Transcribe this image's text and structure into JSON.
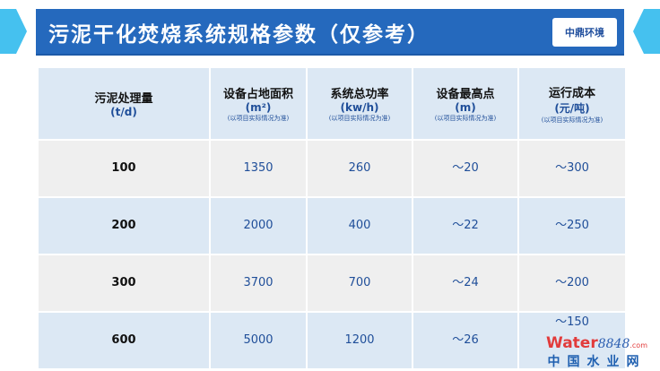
{
  "title": "污泥干化焚烧系统规格参数（仅参考）",
  "logo_text": "中鼎环境",
  "table": {
    "headers": [
      {
        "title": "污泥处理量",
        "unit": "(t/d)",
        "note": ""
      },
      {
        "title": "设备占地面积",
        "unit": "(m²)",
        "note": "(以项目实际情况为准)"
      },
      {
        "title": "系统总功率",
        "unit": "(kw/h)",
        "note": "(以项目实际情况为准)"
      },
      {
        "title": "设备最高点",
        "unit": "(m)",
        "note": "(以项目实际情况为准)"
      },
      {
        "title": "运行成本",
        "unit": "(元/吨)",
        "note": "(以项目实际情况为准)"
      }
    ],
    "rows": [
      [
        "100",
        "1350",
        "260",
        "～20",
        "～300"
      ],
      [
        "200",
        "2000",
        "400",
        "～22",
        "～250"
      ],
      [
        "300",
        "3700",
        "700",
        "～24",
        "～200"
      ],
      [
        "600",
        "5000",
        "1200",
        "～26",
        "～150"
      ]
    ]
  },
  "watermark": {
    "brand": "Water",
    "number": "8848",
    "domain": ".com",
    "cn": "中国水业网"
  }
}
